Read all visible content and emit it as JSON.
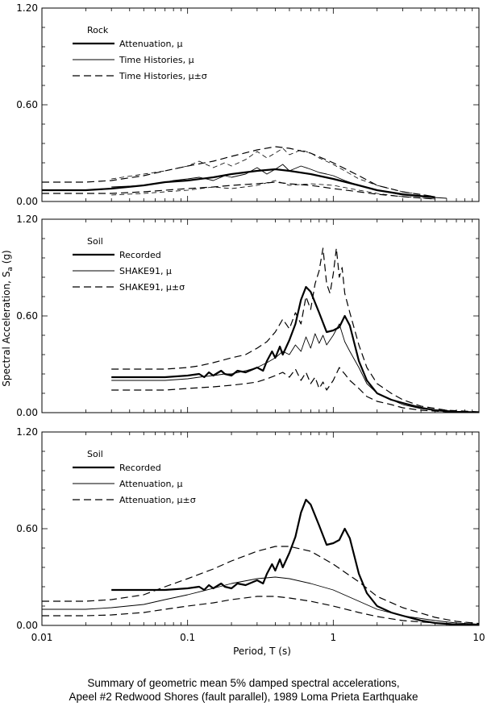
{
  "figure": {
    "ylabel_main": "Spectral Acceleration, S",
    "ylabel_sub": "a",
    "ylabel_unit": " (g)",
    "xlabel": "Period, T (s)",
    "caption_line1": "Summary of geometric mean 5% damped spectral accelerations,",
    "caption_line2": "Apeel #2 Redwood Shores (fault parallel), 1989 Loma Prieta Earthquake"
  },
  "chart_data": [
    {
      "type": "line",
      "panel": "top",
      "legend_title": "Rock",
      "x_scale": "log",
      "xlim": [
        0.01,
        10
      ],
      "ylim": [
        0,
        1.2
      ],
      "x_ticks": [
        "0.01",
        "0.1",
        "1",
        "10"
      ],
      "y_ticks": [
        "0.00",
        "0.60",
        "1.20"
      ],
      "show_x_tick_labels": false,
      "grid": false,
      "legend": "top-left",
      "series": [
        {
          "name": "Attenuation, μ",
          "style": "thick",
          "x": [
            0.01,
            0.02,
            0.03,
            0.05,
            0.07,
            0.1,
            0.15,
            0.2,
            0.3,
            0.4,
            0.5,
            0.7,
            1.0,
            1.5,
            2.0,
            3.0,
            5.0
          ],
          "y": [
            0.07,
            0.07,
            0.08,
            0.1,
            0.12,
            0.13,
            0.15,
            0.17,
            0.19,
            0.2,
            0.19,
            0.17,
            0.14,
            0.1,
            0.07,
            0.045,
            0.025
          ]
        },
        {
          "name": "Time Histories, μ",
          "style": "thin",
          "x": [
            0.03,
            0.04,
            0.05,
            0.06,
            0.07,
            0.08,
            0.1,
            0.12,
            0.15,
            0.18,
            0.2,
            0.25,
            0.3,
            0.35,
            0.4,
            0.45,
            0.5,
            0.6,
            0.7,
            0.8,
            0.9,
            1.0,
            1.2,
            1.5,
            2.0,
            3.0,
            4.0,
            6.0
          ],
          "y": [
            0.09,
            0.095,
            0.1,
            0.11,
            0.12,
            0.13,
            0.14,
            0.15,
            0.13,
            0.16,
            0.15,
            0.17,
            0.21,
            0.17,
            0.2,
            0.23,
            0.19,
            0.22,
            0.2,
            0.18,
            0.17,
            0.16,
            0.13,
            0.1,
            0.07,
            0.04,
            0.03,
            0.02
          ]
        },
        {
          "name": "Time Histories, μ±σ",
          "style": "dashed",
          "x": [
            0.01,
            0.02,
            0.03,
            0.05,
            0.07,
            0.1,
            0.15,
            0.2,
            0.3,
            0.4,
            0.5,
            0.7,
            1.0,
            1.5,
            2.0,
            3.0,
            5.0
          ],
          "y": [
            0.12,
            0.12,
            0.13,
            0.16,
            0.19,
            0.22,
            0.25,
            0.28,
            0.32,
            0.34,
            0.33,
            0.3,
            0.24,
            0.16,
            0.1,
            0.06,
            0.03
          ]
        },
        {
          "name": "Time Histories, μ±σ (lower)",
          "style": "dashed",
          "x": [
            0.01,
            0.02,
            0.03,
            0.05,
            0.07,
            0.1,
            0.15,
            0.2,
            0.3,
            0.4,
            0.5,
            0.7,
            1.0,
            1.5,
            2.0,
            3.0,
            5.0
          ],
          "y": [
            0.05,
            0.05,
            0.05,
            0.06,
            0.07,
            0.08,
            0.09,
            0.1,
            0.11,
            0.12,
            0.11,
            0.1,
            0.08,
            0.06,
            0.045,
            0.03,
            0.015
          ]
        },
        {
          "name": "Time Histories, μ±σ (upper)",
          "style": "thindash",
          "x": [
            0.03,
            0.05,
            0.07,
            0.1,
            0.12,
            0.15,
            0.18,
            0.2,
            0.25,
            0.3,
            0.35,
            0.4,
            0.45,
            0.5,
            0.6,
            0.7,
            0.8,
            1.0,
            1.2,
            1.5,
            2.0,
            3.0,
            5.0
          ],
          "y": [
            0.14,
            0.17,
            0.19,
            0.22,
            0.25,
            0.21,
            0.24,
            0.22,
            0.26,
            0.31,
            0.27,
            0.3,
            0.33,
            0.29,
            0.32,
            0.3,
            0.27,
            0.23,
            0.19,
            0.14,
            0.1,
            0.06,
            0.03
          ]
        },
        {
          "name": "Time Histories, μ±σ (lower thin)",
          "style": "thindash",
          "x": [
            0.03,
            0.05,
            0.07,
            0.1,
            0.15,
            0.2,
            0.3,
            0.4,
            0.5,
            0.7,
            1.0,
            1.5,
            2.0,
            3.0,
            5.0
          ],
          "y": [
            0.04,
            0.05,
            0.06,
            0.07,
            0.09,
            0.08,
            0.1,
            0.13,
            0.1,
            0.11,
            0.1,
            0.07,
            0.05,
            0.03,
            0.015
          ]
        }
      ]
    },
    {
      "type": "line",
      "panel": "middle",
      "legend_title": "Soil",
      "x_scale": "log",
      "xlim": [
        0.01,
        10
      ],
      "ylim": [
        0,
        1.2
      ],
      "x_ticks": [
        "0.01",
        "0.1",
        "1",
        "10"
      ],
      "y_ticks": [
        "0.00",
        "0.60",
        "1.20"
      ],
      "show_x_tick_labels": false,
      "grid": false,
      "legend": "top-left",
      "series": [
        {
          "name": "Recorded",
          "style": "thick",
          "x": [
            0.03,
            0.05,
            0.07,
            0.1,
            0.12,
            0.13,
            0.14,
            0.15,
            0.17,
            0.18,
            0.2,
            0.22,
            0.25,
            0.3,
            0.33,
            0.35,
            0.38,
            0.4,
            0.43,
            0.45,
            0.5,
            0.55,
            0.6,
            0.65,
            0.7,
            0.8,
            0.9,
            1.0,
            1.1,
            1.2,
            1.3,
            1.5,
            1.7,
            2.0,
            2.5,
            3.0,
            4.0,
            5.0,
            7.0,
            10.0
          ],
          "y": [
            0.22,
            0.22,
            0.22,
            0.23,
            0.24,
            0.22,
            0.25,
            0.23,
            0.26,
            0.24,
            0.23,
            0.26,
            0.25,
            0.28,
            0.26,
            0.32,
            0.38,
            0.34,
            0.41,
            0.36,
            0.45,
            0.55,
            0.7,
            0.78,
            0.75,
            0.62,
            0.5,
            0.51,
            0.53,
            0.6,
            0.54,
            0.32,
            0.2,
            0.12,
            0.08,
            0.06,
            0.03,
            0.015,
            0.005,
            0.002
          ]
        },
        {
          "name": "SHAKE91, μ",
          "style": "thin",
          "x": [
            0.03,
            0.05,
            0.07,
            0.1,
            0.12,
            0.15,
            0.18,
            0.2,
            0.25,
            0.3,
            0.35,
            0.4,
            0.45,
            0.5,
            0.55,
            0.6,
            0.65,
            0.7,
            0.75,
            0.8,
            0.85,
            0.9,
            1.0,
            1.1,
            1.2,
            1.3,
            1.5,
            1.7,
            2.0,
            2.5,
            3.0,
            4.0,
            6.0,
            10.0
          ],
          "y": [
            0.2,
            0.2,
            0.2,
            0.21,
            0.22,
            0.23,
            0.24,
            0.24,
            0.26,
            0.28,
            0.31,
            0.34,
            0.38,
            0.36,
            0.42,
            0.38,
            0.47,
            0.4,
            0.49,
            0.43,
            0.48,
            0.42,
            0.48,
            0.55,
            0.44,
            0.38,
            0.28,
            0.18,
            0.12,
            0.08,
            0.05,
            0.025,
            0.01,
            0.003
          ]
        },
        {
          "name": "SHAKE91, μ±σ",
          "style": "dashed",
          "x": [
            0.03,
            0.05,
            0.07,
            0.1,
            0.12,
            0.15,
            0.2,
            0.25,
            0.3,
            0.35,
            0.4,
            0.45,
            0.5,
            0.55,
            0.6,
            0.65,
            0.7,
            0.75,
            0.8,
            0.85,
            0.9,
            0.95,
            1.0,
            1.05,
            1.1,
            1.15,
            1.2,
            1.3,
            1.5,
            1.7,
            2.0,
            2.5,
            3.0,
            4.0,
            6.0,
            10.0
          ],
          "y": [
            0.27,
            0.27,
            0.27,
            0.28,
            0.29,
            0.31,
            0.34,
            0.36,
            0.4,
            0.44,
            0.5,
            0.58,
            0.52,
            0.62,
            0.55,
            0.72,
            0.64,
            0.8,
            0.88,
            1.02,
            0.8,
            0.74,
            0.86,
            1.02,
            0.84,
            0.9,
            0.74,
            0.62,
            0.42,
            0.28,
            0.18,
            0.12,
            0.08,
            0.04,
            0.015,
            0.005
          ]
        },
        {
          "name": "SHAKE91, μ±σ (lower)",
          "style": "dashed",
          "x": [
            0.03,
            0.05,
            0.07,
            0.1,
            0.15,
            0.2,
            0.25,
            0.3,
            0.35,
            0.4,
            0.45,
            0.5,
            0.55,
            0.6,
            0.65,
            0.7,
            0.75,
            0.8,
            0.85,
            0.9,
            1.0,
            1.1,
            1.2,
            1.3,
            1.5,
            1.7,
            2.0,
            2.5,
            3.0,
            4.0,
            6.0,
            10.0
          ],
          "y": [
            0.14,
            0.14,
            0.14,
            0.15,
            0.16,
            0.17,
            0.18,
            0.19,
            0.21,
            0.23,
            0.25,
            0.22,
            0.27,
            0.2,
            0.25,
            0.18,
            0.22,
            0.15,
            0.19,
            0.14,
            0.2,
            0.28,
            0.24,
            0.2,
            0.15,
            0.1,
            0.07,
            0.05,
            0.03,
            0.015,
            0.005,
            0.002
          ]
        }
      ]
    },
    {
      "type": "line",
      "panel": "bottom",
      "legend_title": "Soil",
      "x_scale": "log",
      "xlim": [
        0.01,
        10
      ],
      "ylim": [
        0,
        1.2
      ],
      "x_ticks": [
        "0.01",
        "0.1",
        "1",
        "10"
      ],
      "y_ticks": [
        "0.00",
        "0.60",
        "1.20"
      ],
      "show_x_tick_labels": true,
      "grid": false,
      "legend": "top-left",
      "series": [
        {
          "name": "Recorded",
          "style": "thick",
          "x": [
            0.03,
            0.05,
            0.07,
            0.1,
            0.12,
            0.13,
            0.14,
            0.15,
            0.17,
            0.18,
            0.2,
            0.22,
            0.25,
            0.3,
            0.33,
            0.35,
            0.38,
            0.4,
            0.43,
            0.45,
            0.5,
            0.55,
            0.6,
            0.65,
            0.7,
            0.8,
            0.9,
            1.0,
            1.1,
            1.2,
            1.3,
            1.5,
            1.7,
            2.0,
            2.5,
            3.0,
            4.0,
            5.0,
            7.0,
            10.0
          ],
          "y": [
            0.22,
            0.22,
            0.22,
            0.23,
            0.24,
            0.22,
            0.25,
            0.23,
            0.26,
            0.24,
            0.23,
            0.26,
            0.25,
            0.28,
            0.26,
            0.32,
            0.38,
            0.34,
            0.41,
            0.36,
            0.45,
            0.55,
            0.7,
            0.78,
            0.75,
            0.62,
            0.5,
            0.51,
            0.53,
            0.6,
            0.54,
            0.32,
            0.2,
            0.12,
            0.08,
            0.06,
            0.03,
            0.015,
            0.005,
            0.002
          ]
        },
        {
          "name": "Attenuation, μ",
          "style": "thin",
          "x": [
            0.01,
            0.02,
            0.03,
            0.05,
            0.07,
            0.1,
            0.15,
            0.2,
            0.3,
            0.4,
            0.5,
            0.7,
            1.0,
            1.5,
            2.0,
            3.0,
            5.0,
            7.0,
            10.0
          ],
          "y": [
            0.1,
            0.1,
            0.11,
            0.13,
            0.16,
            0.19,
            0.23,
            0.26,
            0.29,
            0.3,
            0.29,
            0.26,
            0.22,
            0.15,
            0.1,
            0.06,
            0.03,
            0.015,
            0.008
          ]
        },
        {
          "name": "Attenuation, μ±σ",
          "style": "dashed",
          "x": [
            0.01,
            0.02,
            0.03,
            0.05,
            0.07,
            0.1,
            0.15,
            0.2,
            0.3,
            0.4,
            0.5,
            0.7,
            1.0,
            1.5,
            2.0,
            3.0,
            5.0,
            7.0,
            10.0
          ],
          "y": [
            0.15,
            0.15,
            0.16,
            0.19,
            0.24,
            0.29,
            0.35,
            0.4,
            0.46,
            0.49,
            0.49,
            0.46,
            0.38,
            0.27,
            0.18,
            0.11,
            0.05,
            0.025,
            0.012
          ]
        },
        {
          "name": "Attenuation, μ±σ (lower)",
          "style": "dashed",
          "x": [
            0.01,
            0.02,
            0.03,
            0.05,
            0.07,
            0.1,
            0.15,
            0.2,
            0.3,
            0.4,
            0.5,
            0.7,
            1.0,
            1.5,
            2.0,
            3.0,
            5.0,
            7.0,
            10.0
          ],
          "y": [
            0.06,
            0.06,
            0.065,
            0.08,
            0.1,
            0.12,
            0.14,
            0.16,
            0.18,
            0.18,
            0.17,
            0.15,
            0.12,
            0.08,
            0.055,
            0.03,
            0.015,
            0.008,
            0.004
          ]
        }
      ]
    }
  ]
}
